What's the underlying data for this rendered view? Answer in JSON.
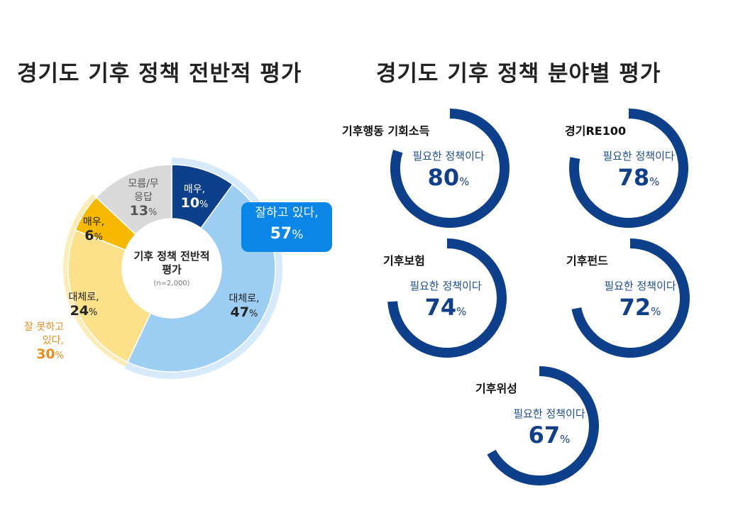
{
  "titles": {
    "left": "경기도 기후 정책 전반적 평가",
    "right": "경기도 기후 정책 분야별 평가"
  },
  "chart_data": [
    {
      "type": "pie",
      "title": "기후 정책 전반적 평가",
      "subtitle": "(n=2,000)",
      "slices": [
        {
          "label": "매우,",
          "value": 10,
          "color": "#0d3f8a"
        },
        {
          "label": "대체로,",
          "value": 47,
          "color": "#9ccdf2"
        },
        {
          "label": "대체로,",
          "value": 24,
          "color": "#fde08a"
        },
        {
          "label": "매우,",
          "value": 6,
          "color": "#f7b800"
        },
        {
          "label": "모름/무응답",
          "value": 13,
          "color": "#d9d9d9"
        }
      ],
      "groups": [
        {
          "label": "잘하고 있다,",
          "value": 57,
          "color": "#0a86e8"
        },
        {
          "label": "잘 못하고 있다,",
          "value": 30,
          "color": "#ee8a1a"
        }
      ]
    },
    {
      "type": "gauge",
      "subtitle": "필요한 정책이다",
      "unit": "%",
      "color": "#0d3f8a",
      "items": [
        {
          "name": "기후행동 기회소득",
          "value": 80
        },
        {
          "name": "경기RE100",
          "value": 78
        },
        {
          "name": "기후보험",
          "value": 74
        },
        {
          "name": "기후펀드",
          "value": 72
        },
        {
          "name": "기후위성",
          "value": 67
        }
      ]
    }
  ]
}
